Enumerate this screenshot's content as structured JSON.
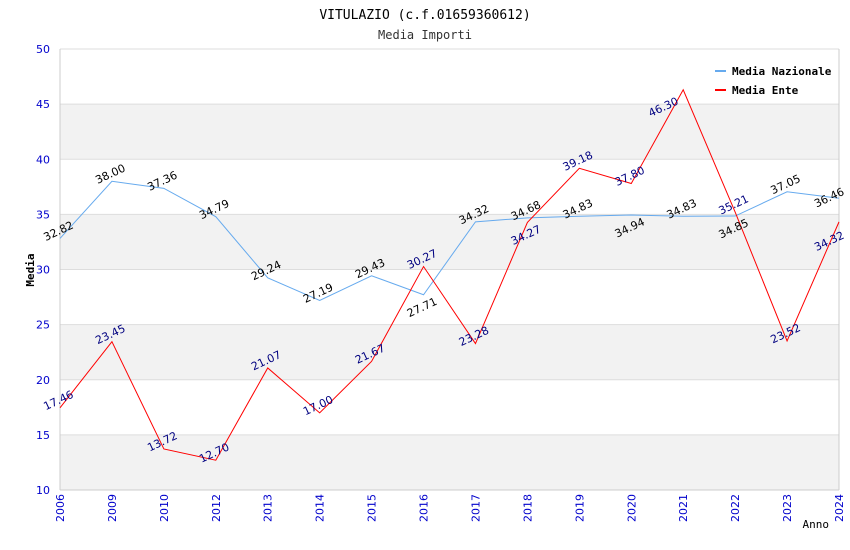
{
  "chart_data": {
    "type": "line",
    "title": "VITULAZIO (c.f.01659360612)",
    "subtitle": "Media Importi",
    "xlabel": "Anno",
    "ylabel": "Media",
    "ylim": [
      10,
      50
    ],
    "yticks": [
      "10",
      "15",
      "20",
      "25",
      "30",
      "35",
      "40",
      "45",
      "50"
    ],
    "categories": [
      "2006",
      "2009",
      "2010",
      "2012",
      "2013",
      "2014",
      "2015",
      "2016",
      "2017",
      "2018",
      "2019",
      "2020",
      "2021",
      "2022",
      "2023",
      "2024"
    ],
    "legend_position": "top-right",
    "grid": true,
    "series": [
      {
        "name": "Media Nazionale",
        "color": "#66aaee",
        "label_color": "#000000",
        "values": [
          32.82,
          38.0,
          37.36,
          34.79,
          29.24,
          27.19,
          29.43,
          27.71,
          34.32,
          34.68,
          34.83,
          34.94,
          34.83,
          34.85,
          37.05,
          36.46
        ]
      },
      {
        "name": "Media Ente",
        "color": "#ff0000",
        "label_color": "#000080",
        "values": [
          17.46,
          23.45,
          13.72,
          12.7,
          21.07,
          17.0,
          21.67,
          30.27,
          23.28,
          34.27,
          39.18,
          37.8,
          46.3,
          35.21,
          23.52,
          34.32
        ]
      }
    ]
  }
}
